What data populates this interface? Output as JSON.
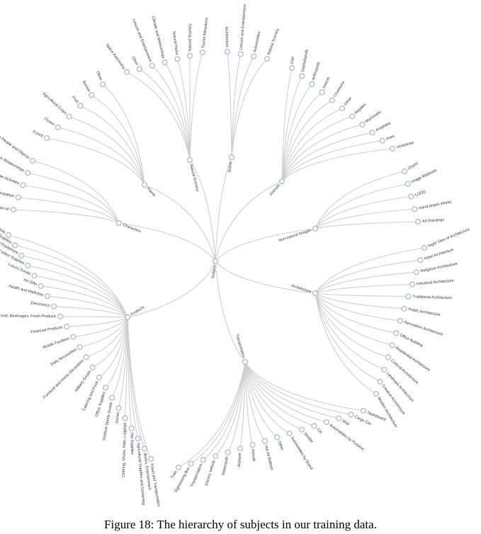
{
  "caption": "Figure 18: The hierarchy of subjects in our training data.",
  "root": "Subject",
  "categories": [
    {
      "name": "Scene",
      "children": [
        "Architecture",
        "Leisure and Entertainment",
        "Automobiles",
        "Natural Scenery"
      ]
    },
    {
      "name": "Animals",
      "children": [
        "Fish",
        "Cephalopods",
        "Arthropods",
        "Insects",
        "Crustacea",
        "Other",
        "Reptiles",
        "Mammalia",
        "Amphibia",
        "Aves",
        "Vertebrata"
      ]
    },
    {
      "name": "Non-natural Images",
      "children": [
        "Charts",
        "Image Materials",
        "LOGO",
        "Hand-drawn Works",
        "Art Paintings"
      ]
    },
    {
      "name": "Architecture",
      "children": [
        "Night View of Architecture",
        "Hotel Architecture",
        "Religious Architecture",
        "Industrial Architecture",
        "Traditional Architecture",
        "Public Architecture",
        "Recreation Architecture",
        "Office Building",
        "Residential Architecture",
        "Cultural Architecture",
        "Landmark Architecture",
        "Creative Architecture",
        "Modern Architecture"
      ]
    },
    {
      "name": "Transportation",
      "children": [
        "Train",
        "Sightseeing Bus",
        "Transportation",
        "Electric Vehicle",
        "Motorcycle",
        "Airplane",
        "Aircraft",
        "Hot Air Balloon",
        "Other",
        "Automobiles by Brand",
        "Stroller",
        "Car",
        "Automobiles by Purpose",
        "Ship",
        "Cargo Car",
        "Skateboard"
      ]
    },
    {
      "name": "Products",
      "children": [
        "Personal Care and Beauty",
        "Automotive Supplies",
        "Hardware and Electrical Equipment",
        "Maternity and Infant Supplies",
        "Luxury Goods",
        "Art Gifts",
        "Health and Wellness",
        "Electronics",
        "Food, Beverages, Fresh Produce",
        "Financial Products",
        "Mobile Facilities",
        "Daily Necessities",
        "Furniture and Home Decoration",
        "Military Goods",
        "Catering and Food",
        "Office Supplies",
        "Outdoor Sports Goods",
        "Drinks",
        "Clothing, Shoes, Hats, Luggage",
        "Pet Supplies",
        "Agricultural Supplies and Gardening",
        "Books, Entertainment",
        "Travel and Transportation"
      ]
    },
    {
      "name": "Characters",
      "children": [
        "Interaction Between People and Objects",
        "Character Relationships",
        "Character Activities",
        "Occupation",
        "Character Close-up"
      ]
    },
    {
      "name": "Plants",
      "children": [
        "Forest",
        "Flower",
        "Agricultural Crops",
        "Fruit",
        "Bonsai",
        "Other"
      ]
    },
    {
      "name": "Natural Scenery",
      "children": [
        "Space Astronomy",
        "Other",
        "Leisure and Entertainment",
        "Climate and Meteorology",
        "Natural Parks",
        "Natural Scenery",
        "Tourist Attractions"
      ]
    }
  ]
}
